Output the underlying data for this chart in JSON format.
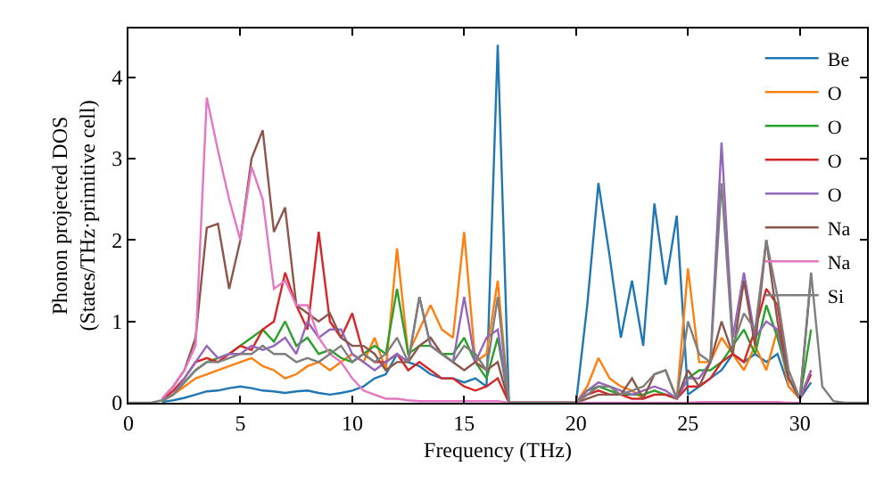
{
  "chart_data": {
    "type": "line",
    "xlabel": "Frequency (THz)",
    "ylabel": "Phonon projected DOS\n(States/THz·primitive cell)",
    "x": [
      0,
      0.5,
      1,
      1.5,
      2,
      2.5,
      3,
      3.5,
      4,
      4.5,
      5,
      5.5,
      6,
      6.5,
      7,
      7.5,
      8,
      8.5,
      9,
      9.5,
      10,
      10.5,
      11,
      11.5,
      12,
      12.5,
      13,
      13.5,
      14,
      14.5,
      15,
      15.5,
      16,
      16.5,
      17,
      17.5,
      18,
      18.5,
      19,
      19.5,
      20,
      20.5,
      21,
      21.5,
      22,
      22.5,
      23,
      23.5,
      24,
      24.5,
      25,
      25.5,
      26,
      26.5,
      27,
      27.5,
      28,
      28.5,
      29,
      29.5,
      30,
      30.5,
      31,
      31.5,
      32,
      32.5,
      33
    ],
    "xlim": [
      0,
      33
    ],
    "xticks": [
      0,
      5,
      10,
      15,
      20,
      25,
      30
    ],
    "ylim": [
      0,
      4.6
    ],
    "yticks": [
      0,
      1,
      2,
      3,
      4
    ],
    "legend": "top right",
    "marker": "none",
    "line_style": "solid",
    "series": [
      {
        "name": "Be",
        "color": "#1f77b4",
        "values": [
          null,
          null,
          null,
          0.01,
          0.03,
          0.06,
          0.1,
          0.14,
          0.15,
          0.18,
          0.2,
          0.18,
          0.15,
          0.14,
          0.12,
          0.14,
          0.15,
          0.12,
          0.1,
          0.12,
          0.15,
          0.2,
          0.3,
          0.35,
          0.6,
          0.5,
          0.45,
          0.35,
          0.3,
          0.3,
          0.25,
          0.3,
          0.2,
          4.4,
          0,
          0,
          0,
          0,
          0,
          0,
          0,
          1.2,
          2.7,
          1.8,
          0.8,
          1.5,
          0.7,
          2.45,
          1.45,
          2.3,
          0.1,
          0.2,
          0.3,
          0.4,
          0.6,
          0.5,
          0.6,
          0.5,
          0.6,
          0.2,
          0.05,
          0.25,
          null,
          null,
          null,
          null,
          null
        ]
      },
      {
        "name": "O",
        "color": "#ff7f0e",
        "values": [
          null,
          null,
          null,
          0.02,
          0.1,
          0.2,
          0.3,
          0.35,
          0.4,
          0.45,
          0.5,
          0.55,
          0.45,
          0.4,
          0.3,
          0.35,
          0.45,
          0.5,
          0.4,
          0.5,
          0.6,
          0.5,
          0.8,
          0.4,
          1.9,
          0.6,
          0.9,
          1.2,
          0.9,
          0.8,
          2.1,
          0.5,
          0.6,
          1.5,
          0,
          0,
          0,
          0,
          0,
          0,
          0,
          0.2,
          0.55,
          0.3,
          0.2,
          0.15,
          0.05,
          0.1,
          0.1,
          0.05,
          1.65,
          0.5,
          0.5,
          0.8,
          0.6,
          0.4,
          0.7,
          0.4,
          0.9,
          0.2,
          0.05,
          0.4,
          null,
          null,
          null,
          null,
          null
        ]
      },
      {
        "name": "O",
        "color": "#2ca02c",
        "values": [
          null,
          null,
          null,
          0.02,
          0.1,
          0.25,
          0.4,
          0.5,
          0.55,
          0.6,
          0.7,
          0.8,
          0.9,
          0.75,
          1.0,
          0.7,
          0.8,
          0.6,
          0.65,
          0.55,
          0.5,
          0.6,
          0.7,
          0.6,
          1.4,
          0.6,
          0.7,
          0.7,
          0.6,
          0.6,
          0.8,
          0.5,
          0.3,
          0.8,
          0,
          0,
          0,
          0,
          0,
          0,
          0,
          0.15,
          0.2,
          0.15,
          0.1,
          0.1,
          0.1,
          0.15,
          0.1,
          0.05,
          0.3,
          0.4,
          0.4,
          0.5,
          0.7,
          0.9,
          0.6,
          1.2,
          0.8,
          0.3,
          0.05,
          0.9,
          null,
          null,
          null,
          null,
          null
        ]
      },
      {
        "name": "O",
        "color": "#d62728",
        "values": [
          null,
          null,
          null,
          0.03,
          0.15,
          0.3,
          0.5,
          0.55,
          0.5,
          0.6,
          0.7,
          0.65,
          0.9,
          1.0,
          1.6,
          1.2,
          0.9,
          2.1,
          1.0,
          0.8,
          1.1,
          0.6,
          0.5,
          0.5,
          0.6,
          0.4,
          0.5,
          0.4,
          0.3,
          0.3,
          0.2,
          0.15,
          0.2,
          0.3,
          0,
          0,
          0,
          0,
          0,
          0,
          0,
          0.1,
          0.15,
          0.1,
          0.1,
          0.05,
          0.05,
          0.1,
          0.1,
          0.05,
          0.2,
          0.2,
          0.3,
          0.5,
          0.6,
          0.5,
          0.9,
          1.4,
          1.2,
          0.3,
          0.05,
          0.35,
          null,
          null,
          null,
          null,
          null
        ]
      },
      {
        "name": "O",
        "color": "#9467bd",
        "values": [
          null,
          null,
          null,
          0.03,
          0.1,
          0.3,
          0.5,
          0.7,
          0.55,
          0.6,
          0.6,
          0.7,
          0.65,
          0.7,
          0.8,
          0.6,
          1.0,
          0.8,
          0.9,
          0.9,
          0.6,
          0.5,
          0.4,
          0.5,
          0.6,
          0.5,
          1.3,
          0.7,
          0.6,
          0.5,
          1.3,
          0.5,
          0.8,
          0.9,
          0,
          0,
          0,
          0,
          0,
          0,
          0,
          0.15,
          0.25,
          0.2,
          0.15,
          0.1,
          0.15,
          0.2,
          0.15,
          0.05,
          0.3,
          0.3,
          0.5,
          3.2,
          0.8,
          1.6,
          0.8,
          1.0,
          0.9,
          0.3,
          0.05,
          0.4,
          null,
          null,
          null,
          null,
          null
        ]
      },
      {
        "name": "Na",
        "color": "#8c564b",
        "values": [
          null,
          null,
          null,
          0.05,
          0.2,
          0.4,
          0.8,
          2.15,
          2.2,
          1.4,
          2.0,
          3.0,
          3.35,
          2.1,
          2.4,
          1.2,
          1.1,
          1.0,
          1.1,
          0.8,
          0.7,
          0.7,
          0.6,
          0.4,
          0.5,
          0.5,
          0.7,
          0.8,
          0.6,
          0.5,
          0.4,
          0.5,
          0.4,
          0.5,
          0,
          0,
          0,
          0,
          0,
          0,
          0,
          0.05,
          0.1,
          0.1,
          0.1,
          0.3,
          0.05,
          0.35,
          0.4,
          0.05,
          0.4,
          0.2,
          0.5,
          1.0,
          0.6,
          1.5,
          0.7,
          2.0,
          1.0,
          0.3,
          0.05,
          1.55,
          null,
          null,
          null,
          null,
          null
        ]
      },
      {
        "name": "Na",
        "color": "#e377c2",
        "values": [
          null,
          null,
          null,
          0.05,
          0.2,
          0.4,
          0.7,
          3.75,
          3.1,
          2.5,
          2.0,
          2.9,
          2.5,
          1.4,
          1.5,
          1.2,
          1.2,
          0.8,
          0.6,
          0.5,
          0.3,
          0.15,
          0.1,
          0.05,
          0.05,
          0.03,
          0.02,
          0.02,
          0.02,
          0.02,
          0.02,
          0.02,
          0.02,
          0.02,
          0,
          0,
          0,
          0,
          0,
          0,
          0,
          0,
          0,
          0,
          0,
          0,
          0,
          0,
          0,
          0,
          0,
          0.01,
          0.01,
          0.01,
          0.01,
          0.01,
          0.01,
          0.01,
          0.01,
          0,
          0,
          null,
          null,
          null,
          null,
          null,
          null
        ]
      },
      {
        "name": "Si",
        "color": "#7f7f7f",
        "values": [
          0,
          0,
          0,
          0.03,
          0.1,
          0.25,
          0.4,
          0.5,
          0.5,
          0.55,
          0.6,
          0.6,
          0.7,
          0.6,
          0.6,
          0.5,
          0.55,
          0.5,
          0.6,
          0.7,
          0.5,
          0.6,
          0.5,
          0.6,
          0.8,
          0.5,
          1.3,
          0.7,
          0.6,
          0.5,
          0.7,
          0.6,
          0.4,
          1.3,
          0,
          0,
          0,
          0,
          0,
          0,
          0,
          0.1,
          0.2,
          0.2,
          0.1,
          0.15,
          0.2,
          0.35,
          0.4,
          0.05,
          1.0,
          0.6,
          0.5,
          2.7,
          0.7,
          1.1,
          0.9,
          2.0,
          1.3,
          0.4,
          0.05,
          1.6,
          0.2,
          0.02,
          0,
          0,
          0
        ]
      }
    ]
  }
}
